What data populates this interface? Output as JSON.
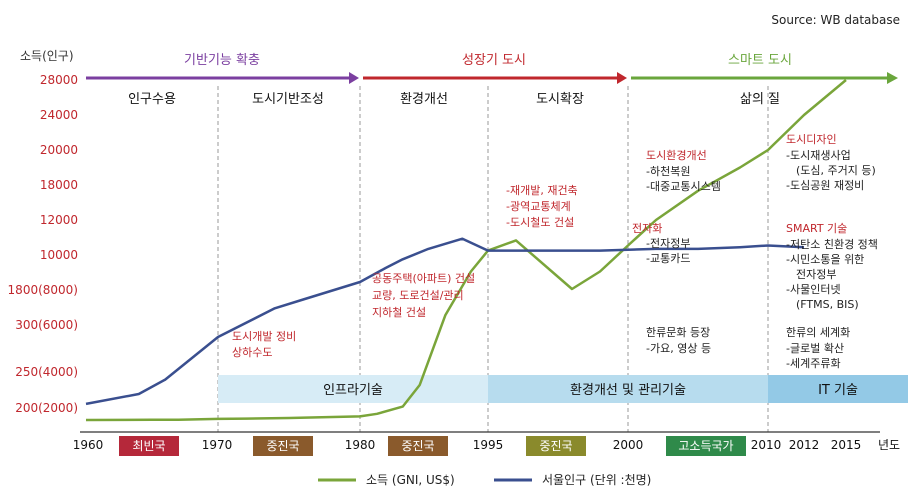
{
  "source": "Source: WB database",
  "chart_data": {
    "type": "line",
    "ylabel": "소득(인구)",
    "xlabel": "년도",
    "x_ticks": [
      "1960",
      "1970",
      "1980",
      "1995",
      "2000",
      "2010",
      "2012",
      "2015"
    ],
    "y_ticks": [
      "28000",
      "24000",
      "20000",
      "18000",
      "12000",
      "10000",
      "1800(8000)",
      "300(6000)",
      "250(4000)",
      "200(2000)"
    ],
    "series": [
      {
        "name": "소득 (GNI, US$)",
        "color": "#7aa53a",
        "points": [
          [
            1960,
            200
          ],
          [
            1965,
            240
          ],
          [
            1967,
            260
          ],
          [
            1970,
            450
          ],
          [
            1972,
            520
          ],
          [
            1975,
            650
          ],
          [
            1980,
            1000
          ],
          [
            1982,
            1600
          ],
          [
            1985,
            2300
          ],
          [
            1987,
            3500
          ],
          [
            1990,
            6500
          ],
          [
            1993,
            9000
          ],
          [
            1995,
            10200
          ],
          [
            1996,
            10800
          ],
          [
            1998,
            8000
          ],
          [
            1999,
            9000
          ],
          [
            2000,
            10500
          ],
          [
            2002,
            12000
          ],
          [
            2005,
            17000
          ],
          [
            2008,
            19000
          ],
          [
            2010,
            20000
          ],
          [
            2012,
            24000
          ],
          [
            2015,
            28000
          ]
        ]
      },
      {
        "name": "서울인구 (단위 :천명)",
        "color": "#3a4f8f",
        "points": [
          [
            1960,
            2450
          ],
          [
            1964,
            3000
          ],
          [
            1966,
            3800
          ],
          [
            1970,
            5500
          ],
          [
            1974,
            6900
          ],
          [
            1976,
            7400
          ],
          [
            1980,
            8400
          ],
          [
            1983,
            9200
          ],
          [
            1985,
            9700
          ],
          [
            1988,
            10300
          ],
          [
            1990,
            10600
          ],
          [
            1992,
            10900
          ],
          [
            1995,
            10200
          ],
          [
            1999,
            10200
          ],
          [
            2002,
            10300
          ],
          [
            2005,
            10300
          ],
          [
            2008,
            10400
          ],
          [
            2010,
            10500
          ],
          [
            2012,
            10400
          ]
        ]
      }
    ]
  },
  "eras": [
    {
      "label": "기반기능 확충",
      "color": "#7b3fa0"
    },
    {
      "label": "성장기 도시",
      "color": "#c0272d"
    },
    {
      "label": "스마트 도시",
      "color": "#6aa63c"
    }
  ],
  "phases": [
    "인구수용",
    "도시기반조성",
    "환경개선",
    "도시확장",
    "삶의 질"
  ],
  "tech_bands": [
    "인프라기술",
    "환경개선 및 관리기술",
    "IT 기술"
  ],
  "stages": [
    {
      "label": "최빈국",
      "color": "#b5283a"
    },
    {
      "label": "중진국",
      "color": "#8a5a2c"
    },
    {
      "label": "중진국",
      "color": "#8a5a2c"
    },
    {
      "label": "중진국",
      "color": "#8a5a2c"
    },
    {
      "label": "고소득국가",
      "color": "#2f8a4a"
    }
  ],
  "annotations": {
    "a1": [
      "도시개발 정비",
      "상하수도"
    ],
    "a2": [
      "공동주택(아파트) 건설",
      "교량, 도로건설/관리",
      "지하철 건설"
    ],
    "a3": [
      "-재개발, 재건축",
      "-광역교통체계",
      "-도시철도 건설"
    ],
    "a4": {
      "head": "도시환경개선",
      "lines": [
        "-하천복원",
        "-대중교통시스템"
      ]
    },
    "a5": {
      "head": "전자화",
      "lines": [
        "-전자정부",
        "-교통카드"
      ]
    },
    "a6": [
      "한류문화 등장",
      "-가요, 영상 등"
    ],
    "a7": {
      "head": "도시디자인",
      "lines": [
        "-도시재생사업",
        "(도심, 주거지 등)",
        "-도심공원 재정비"
      ]
    },
    "a8": {
      "head": "SMART 기술",
      "lines": [
        "-저탄소 친환경 정책",
        "-시민소통을 위한",
        "전자정부",
        "-사물인터넷",
        "(FTMS, BIS)"
      ]
    },
    "a9": [
      "한류의 세계화",
      "-글로벌 확산",
      "-세계주류화"
    ]
  },
  "legend": [
    {
      "label": "소득 (GNI, US$)",
      "color": "#7aa53a"
    },
    {
      "label": "서울인구 (단위 :천명)",
      "color": "#3a4f8f"
    }
  ]
}
